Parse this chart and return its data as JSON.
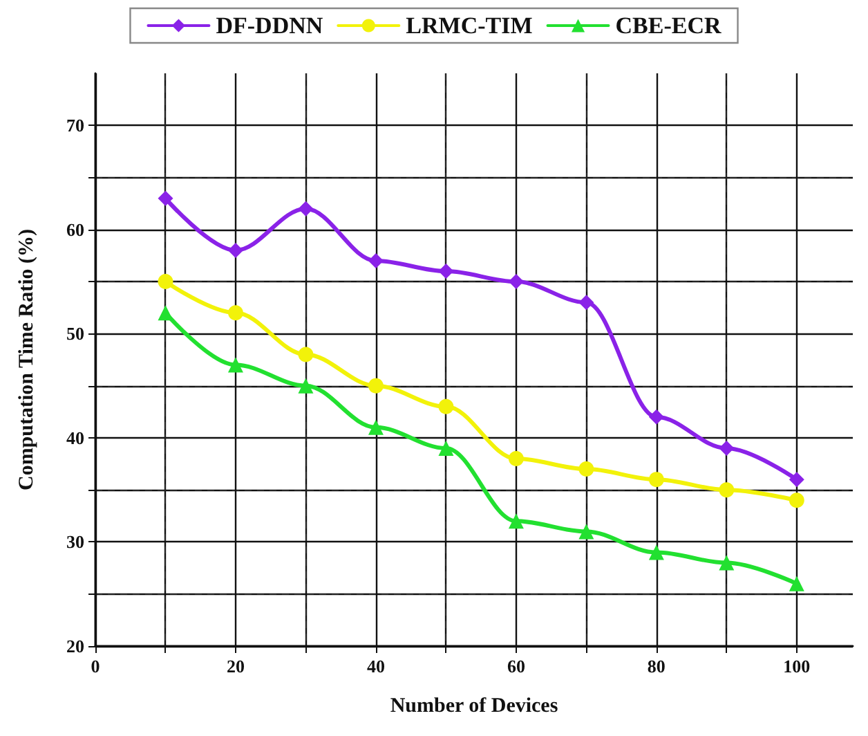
{
  "chart_data": {
    "type": "line",
    "xlabel": "Number of Devices",
    "ylabel": "Computation Time Ratio (%)",
    "x": [
      10,
      20,
      30,
      40,
      50,
      60,
      70,
      80,
      90,
      100
    ],
    "series": [
      {
        "name": "DF-DDNN",
        "color": "#8a22e8",
        "marker": "diamond",
        "values": [
          63,
          58,
          62,
          57,
          56,
          55,
          53,
          42,
          39,
          36
        ]
      },
      {
        "name": "LRMC-TIM",
        "color": "#f2f20a",
        "marker": "circle",
        "values": [
          55,
          52,
          48,
          45,
          43,
          38,
          37,
          36,
          35,
          34
        ]
      },
      {
        "name": "CBE-ECR",
        "color": "#22e030",
        "marker": "triangle",
        "values": [
          52,
          47,
          45,
          41,
          39,
          32,
          31,
          29,
          28,
          26
        ]
      }
    ],
    "xlim": [
      0,
      108
    ],
    "xticks": [
      0,
      {
        "value": 10,
        "label": null
      },
      20,
      {
        "value": 30,
        "label": null
      },
      40,
      {
        "value": 50,
        "label": null
      },
      60,
      {
        "value": 70,
        "label": null
      },
      80,
      {
        "value": 90,
        "label": null
      },
      100
    ],
    "ylim": [
      20,
      75
    ],
    "yticks": [
      20,
      {
        "value": 25,
        "label": null
      },
      30,
      {
        "value": 35,
        "label": null
      },
      40,
      {
        "value": 45,
        "label": null
      },
      50,
      {
        "value": 55,
        "label": null
      },
      60,
      {
        "value": 65,
        "label": null
      },
      70
    ],
    "grid": true,
    "legend": "top",
    "line_style": "solid"
  }
}
